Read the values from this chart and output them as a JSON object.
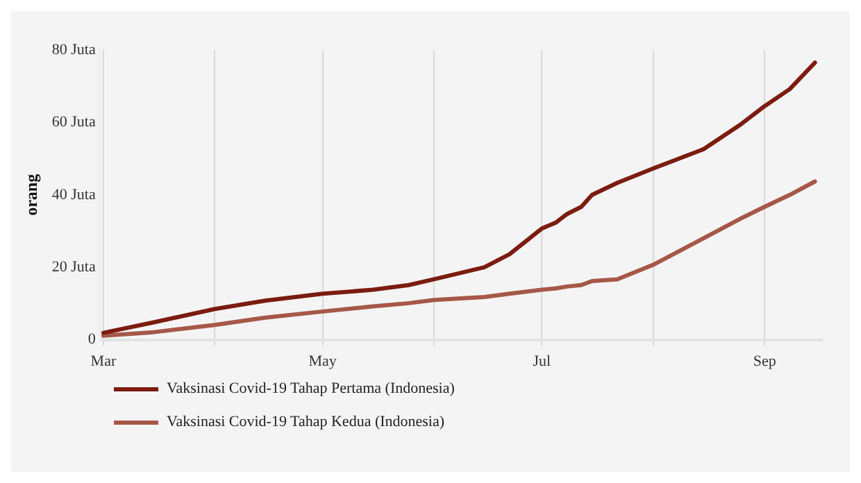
{
  "chart_data": {
    "type": "line",
    "ylabel": "orang",
    "x": [
      "--03-01",
      "--03-15",
      "--04-01",
      "--04-15",
      "--05-01",
      "--05-15",
      "--05-25",
      "--06-01",
      "--06-15",
      "--06-22",
      "--07-01",
      "--07-05",
      "--07-08",
      "--07-12",
      "--07-15",
      "--07-22",
      "--08-01",
      "--08-15",
      "--08-25",
      "--09-01",
      "--09-08",
      "--09-15"
    ],
    "series": [
      {
        "name": "Vaksinasi Covid-19 Tahap Pertama (Indonesia)",
        "color": "#7b1c10",
        "values": [
          1.9,
          4.8,
          8.5,
          10.8,
          12.7,
          13.8,
          15.1,
          16.7,
          20.0,
          23.6,
          30.7,
          32.4,
          34.7,
          36.7,
          40.0,
          43.3,
          47.3,
          52.6,
          59.2,
          64.5,
          69.2,
          76.5
        ]
      },
      {
        "name": "Vaksinasi Covid-19 Tahap Kedua (Indonesia)",
        "color": "#a65848",
        "values": [
          1.1,
          2.1,
          4.1,
          6.1,
          7.8,
          9.2,
          10.1,
          11.0,
          11.8,
          12.7,
          13.8,
          14.2,
          14.7,
          15.1,
          16.2,
          16.7,
          20.7,
          28.0,
          33.3,
          36.7,
          40.0,
          43.7
        ]
      }
    ],
    "xlim": [
      "--02-28",
      "--09-17"
    ],
    "xticks": [
      {
        "value": "--03-01",
        "label": "Mar"
      },
      {
        "value": "--04-01",
        "label": null
      },
      {
        "value": "--05-01",
        "label": "May"
      },
      {
        "value": "--06-01",
        "label": null
      },
      {
        "value": "--07-01",
        "label": "Jul"
      },
      {
        "value": "--08-01",
        "label": null
      },
      {
        "value": "--09-01",
        "label": "Sep"
      }
    ],
    "ylim": [
      0,
      80
    ],
    "yticks": [
      0,
      {
        "value": 20,
        "label": "20 Juta"
      },
      {
        "value": 40,
        "label": "40 Juta"
      },
      {
        "value": 60,
        "label": "60 Juta"
      },
      {
        "value": 80,
        "label": "80 Juta"
      }
    ],
    "grid": "x",
    "legend": "bottom left",
    "marker": "none",
    "line_style": "solid"
  }
}
